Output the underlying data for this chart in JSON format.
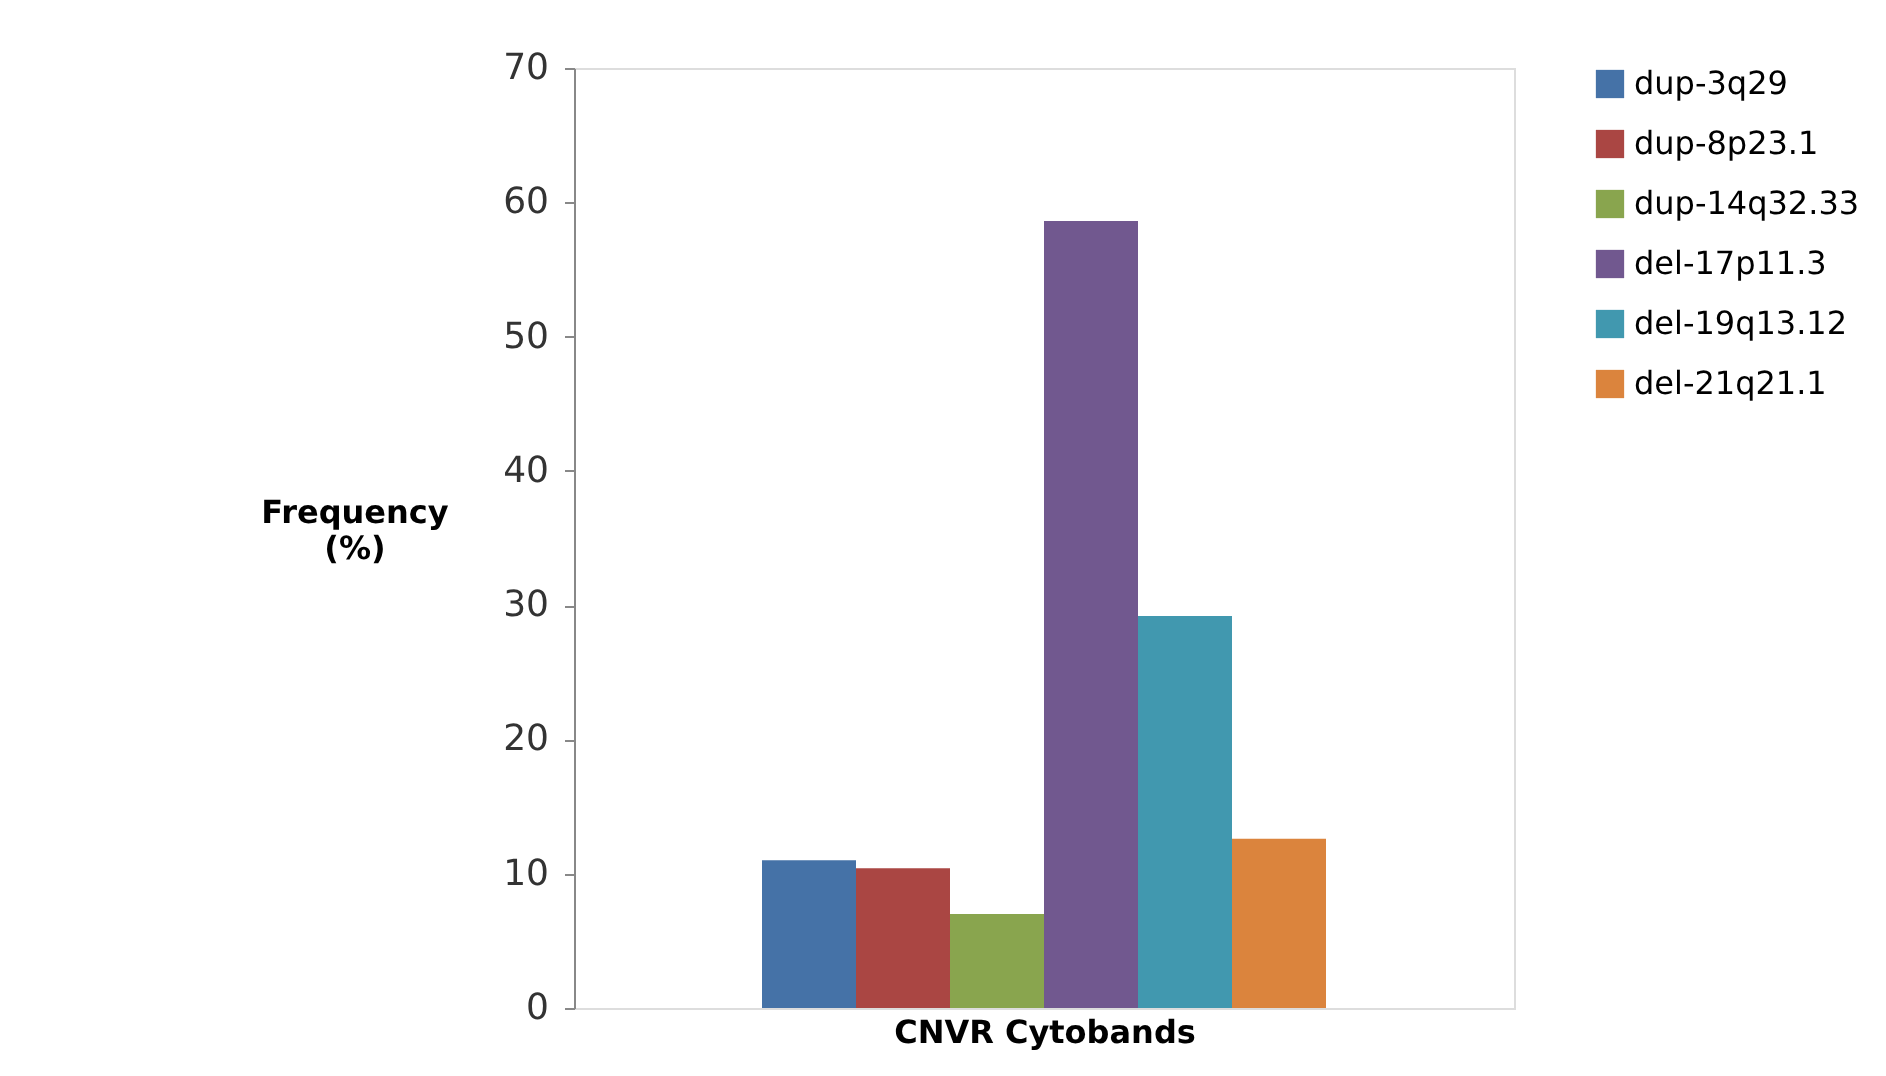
{
  "chart_data": {
    "type": "bar",
    "xlabel": "CNVR Cytobands",
    "ylabel": "Frequency (%)",
    "categories": [
      null
    ],
    "series": [
      {
        "name": "dup-3q29",
        "color": "#4572a7",
        "values": [
          11.0
        ]
      },
      {
        "name": "dup-8p23.1",
        "color": "#aa4643",
        "values": [
          10.4
        ]
      },
      {
        "name": "dup-14q32.33",
        "color": "#89a54e",
        "values": [
          7.0
        ]
      },
      {
        "name": "del-17p11.3",
        "color": "#71588f",
        "values": [
          58.6
        ]
      },
      {
        "name": "del-19q13.12",
        "color": "#4198af",
        "values": [
          29.2
        ]
      },
      {
        "name": "del-21q21.1",
        "color": "#db843d",
        "values": [
          12.6
        ]
      }
    ],
    "ylim": [
      0,
      70
    ],
    "yticks": [
      0,
      10,
      20,
      30,
      40,
      50,
      60,
      70
    ],
    "grid": false,
    "legend": "right"
  }
}
